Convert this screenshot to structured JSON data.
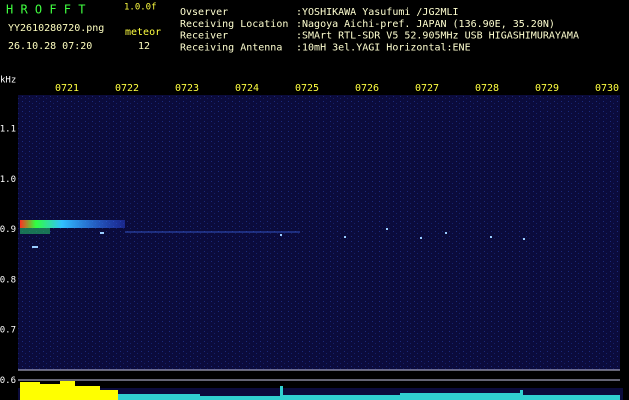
{
  "header": {
    "app": "H R O F F T",
    "version": "1.0.0f",
    "file": "YY2610280720.png",
    "datetime": "26.10.28 07:20",
    "meteor_label": "meteor",
    "meteor_count": "12"
  },
  "info": [
    {
      "label": "Ovserver",
      "value": ":YOSHIKAWA Yasufumi /JG2MLI"
    },
    {
      "label": "Receiving Location",
      "value": ":Nagoya Aichi-pref. JAPAN (136.90E, 35.20N)"
    },
    {
      "label": "Receiver",
      "value": ":SMArt RTL-SDR V5 52.905MHz USB HIGASHIMURAYAMA"
    },
    {
      "label": "Receiving Antenna",
      "value": ":10mH 3el.YAGI Horizontal:ENE"
    }
  ],
  "axis": {
    "unit": "kHz",
    "y_labels": [
      "1.1",
      "1.0",
      "0.9",
      "0.8",
      "0.7",
      "0.6"
    ],
    "x_labels": [
      "0721",
      "0722",
      "0723",
      "0724",
      "0725",
      "0726",
      "0727",
      "0728",
      "0729",
      "0730"
    ]
  }
}
